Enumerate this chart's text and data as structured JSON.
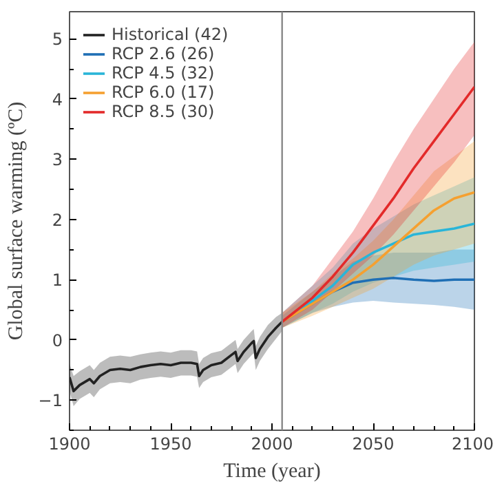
{
  "chart_data": {
    "type": "line",
    "xlabel": "Time (year)",
    "ylabel": "Global surface warming (ºC)",
    "xlim": [
      1900,
      2100
    ],
    "ylim": [
      -1.5,
      5.45
    ],
    "xticks": [
      1900,
      1950,
      2000,
      2050,
      2100
    ],
    "yticks": [
      -1,
      0,
      1,
      2,
      3,
      4,
      5
    ],
    "grid": false,
    "legend": "top left",
    "ref_lines": [
      {
        "axis": "x",
        "value": 2005,
        "label": null,
        "color": "#888888"
      }
    ],
    "series": [
      {
        "name": "Historical (42)",
        "color": "#222222",
        "x": [
          1900,
          1902,
          1905,
          1910,
          1912,
          1915,
          1920,
          1925,
          1930,
          1935,
          1940,
          1945,
          1950,
          1955,
          1960,
          1963,
          1964,
          1966,
          1970,
          1975,
          1980,
          1982,
          1983,
          1986,
          1990,
          1991,
          1992,
          1994,
          1998,
          2002,
          2005
        ],
        "values": [
          -0.62,
          -0.85,
          -0.75,
          -0.65,
          -0.72,
          -0.6,
          -0.5,
          -0.48,
          -0.5,
          -0.45,
          -0.42,
          -0.4,
          -0.42,
          -0.38,
          -0.38,
          -0.4,
          -0.6,
          -0.5,
          -0.42,
          -0.38,
          -0.25,
          -0.2,
          -0.35,
          -0.2,
          -0.05,
          -0.02,
          -0.3,
          -0.15,
          0.05,
          0.2,
          0.3
        ],
        "lower": [
          -0.85,
          -1.1,
          -0.98,
          -0.88,
          -0.95,
          -0.82,
          -0.72,
          -0.7,
          -0.72,
          -0.66,
          -0.63,
          -0.61,
          -0.63,
          -0.59,
          -0.59,
          -0.61,
          -0.8,
          -0.7,
          -0.62,
          -0.58,
          -0.45,
          -0.4,
          -0.55,
          -0.4,
          -0.25,
          -0.22,
          -0.5,
          -0.35,
          -0.15,
          0.02,
          0.15
        ],
        "upper": [
          -0.4,
          -0.6,
          -0.52,
          -0.42,
          -0.5,
          -0.38,
          -0.28,
          -0.26,
          -0.28,
          -0.24,
          -0.21,
          -0.19,
          -0.21,
          -0.17,
          -0.17,
          -0.19,
          -0.4,
          -0.3,
          -0.22,
          -0.18,
          -0.05,
          0.0,
          -0.15,
          0.0,
          0.15,
          0.18,
          -0.1,
          0.05,
          0.25,
          0.38,
          0.45
        ]
      },
      {
        "name": "RCP 2.6 (26)",
        "color": "#1f6fb5",
        "x": [
          2005,
          2020,
          2030,
          2040,
          2050,
          2060,
          2070,
          2080,
          2090,
          2100
        ],
        "values": [
          0.3,
          0.6,
          0.8,
          0.95,
          1.0,
          1.03,
          1.0,
          0.98,
          1.0,
          1.0
        ],
        "lower": [
          0.2,
          0.45,
          0.55,
          0.62,
          0.65,
          0.62,
          0.6,
          0.58,
          0.55,
          0.5
        ],
        "upper": [
          0.4,
          0.8,
          1.05,
          1.3,
          1.4,
          1.45,
          1.45,
          1.45,
          1.5,
          1.5
        ]
      },
      {
        "name": "RCP 4.5 (32)",
        "color": "#29b5d8",
        "x": [
          2005,
          2020,
          2030,
          2040,
          2050,
          2060,
          2070,
          2080,
          2090,
          2100
        ],
        "values": [
          0.3,
          0.65,
          0.9,
          1.25,
          1.45,
          1.6,
          1.75,
          1.8,
          1.85,
          1.93
        ],
        "lower": [
          0.2,
          0.45,
          0.6,
          0.8,
          0.95,
          1.05,
          1.15,
          1.2,
          1.25,
          1.3
        ],
        "upper": [
          0.45,
          0.9,
          1.2,
          1.6,
          1.85,
          2.05,
          2.25,
          2.4,
          2.55,
          2.7
        ]
      },
      {
        "name": "RCP 6.0 (17)",
        "color": "#f5a030",
        "x": [
          2005,
          2020,
          2030,
          2040,
          2050,
          2060,
          2070,
          2080,
          2090,
          2100
        ],
        "values": [
          0.3,
          0.6,
          0.8,
          1.0,
          1.25,
          1.55,
          1.85,
          2.15,
          2.35,
          2.45
        ],
        "lower": [
          0.2,
          0.4,
          0.55,
          0.7,
          0.85,
          1.05,
          1.25,
          1.4,
          1.5,
          1.6
        ],
        "upper": [
          0.45,
          0.8,
          1.1,
          1.35,
          1.65,
          2.0,
          2.4,
          2.8,
          3.05,
          3.3
        ]
      },
      {
        "name": "RCP 8.5 (30)",
        "color": "#e32a2a",
        "x": [
          2005,
          2020,
          2030,
          2040,
          2050,
          2060,
          2070,
          2080,
          2090,
          2100
        ],
        "values": [
          0.3,
          0.7,
          1.05,
          1.45,
          1.9,
          2.35,
          2.85,
          3.3,
          3.75,
          4.2
        ],
        "lower": [
          0.2,
          0.5,
          0.8,
          1.1,
          1.4,
          1.75,
          2.15,
          2.55,
          2.95,
          3.4
        ],
        "upper": [
          0.45,
          0.9,
          1.35,
          1.8,
          2.35,
          2.95,
          3.5,
          4.0,
          4.5,
          4.95
        ]
      }
    ]
  }
}
